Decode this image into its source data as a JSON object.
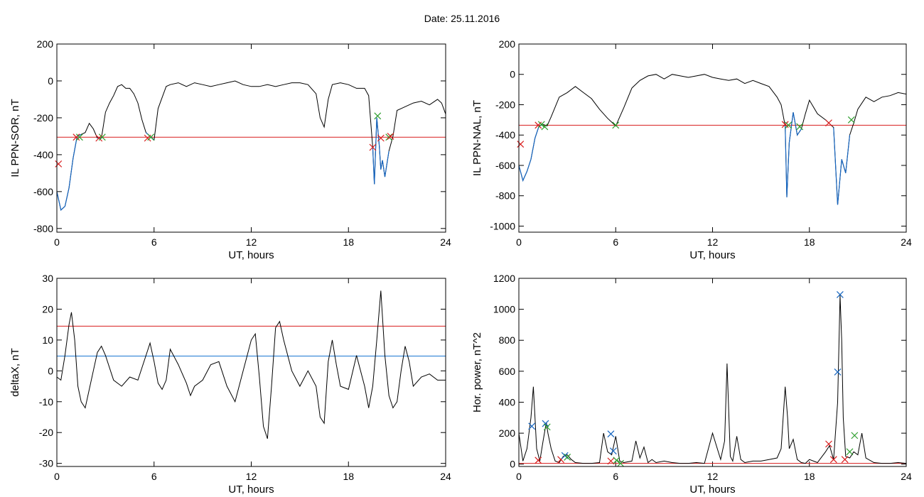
{
  "header": {
    "date_label": "Date:  25.11.2016"
  },
  "colors": {
    "signal": "#000000",
    "threshold": "#d81b1b",
    "storm": "#1565c0",
    "baseline": "#1976d2",
    "marker_red": "#d81b1b",
    "marker_green": "#2e9e2e",
    "marker_blue": "#1565c0"
  },
  "chart_data": [
    {
      "id": "sor",
      "type": "line",
      "title": "",
      "xlabel": "UT, hours",
      "ylabel": "IL PPN-SOR, nT",
      "xlim": [
        0,
        24
      ],
      "ylim": [
        -820,
        200
      ],
      "xticks": [
        0,
        6,
        12,
        18,
        24
      ],
      "yticks": [
        200,
        0,
        -200,
        -400,
        -600,
        -800
      ],
      "series": [
        {
          "x": [
            0,
            0.25,
            0.5,
            0.75,
            1,
            1.25,
            1.5,
            1.75,
            2,
            2.25,
            2.5,
            2.75,
            3,
            3.25,
            3.5,
            3.75,
            4,
            4.25,
            4.5,
            4.75,
            5,
            5.25,
            5.5,
            5.75,
            6,
            6.25,
            6.5,
            6.75,
            7,
            7.5,
            8,
            8.5,
            9,
            9.5,
            10,
            10.5,
            11,
            11.5,
            12,
            12.5,
            13,
            13.5,
            14,
            14.5,
            15,
            15.5,
            16,
            16.25,
            16.5,
            16.75,
            17,
            17.5,
            18,
            18.5,
            19,
            19.25,
            19.5,
            19.6,
            19.75,
            19.9,
            20,
            20.1,
            20.25,
            20.5,
            20.75,
            21,
            21.25,
            21.5,
            22,
            22.5,
            23,
            23.5,
            23.75,
            24
          ],
          "y": [
            -600,
            -700,
            -680,
            -580,
            -420,
            -300,
            -290,
            -280,
            -230,
            -260,
            -310,
            -310,
            -170,
            -120,
            -80,
            -30,
            -20,
            -40,
            -40,
            -70,
            -120,
            -210,
            -280,
            -300,
            -320,
            -150,
            -90,
            -30,
            -20,
            -10,
            -30,
            -10,
            -20,
            -30,
            -20,
            -10,
            0,
            -20,
            -30,
            -30,
            -20,
            -30,
            -20,
            -10,
            -10,
            -20,
            -70,
            -200,
            -250,
            -100,
            -20,
            -10,
            -20,
            -40,
            -40,
            -80,
            -360,
            -560,
            -200,
            -350,
            -480,
            -430,
            -520,
            -380,
            -300,
            -160,
            -150,
            -140,
            -120,
            -110,
            -130,
            -100,
            -120,
            -180
          ]
        }
      ],
      "threshold": -305,
      "storm_ranges": [
        [
          0,
          1.5
        ],
        [
          2.5,
          2.9
        ],
        [
          5.5,
          6
        ],
        [
          19.5,
          20.7
        ]
      ],
      "markers": [
        {
          "x": 0.1,
          "y": -450,
          "color": "red"
        },
        {
          "x": 1.2,
          "y": -305,
          "color": "red"
        },
        {
          "x": 1.4,
          "y": -305,
          "color": "green"
        },
        {
          "x": 2.6,
          "y": -310,
          "color": "red"
        },
        {
          "x": 2.8,
          "y": -305,
          "color": "green"
        },
        {
          "x": 5.6,
          "y": -310,
          "color": "red"
        },
        {
          "x": 5.8,
          "y": -305,
          "color": "green"
        },
        {
          "x": 19.5,
          "y": -360,
          "color": "red"
        },
        {
          "x": 19.8,
          "y": -190,
          "color": "green"
        },
        {
          "x": 20.0,
          "y": -310,
          "color": "red"
        },
        {
          "x": 20.5,
          "y": -305,
          "color": "green"
        },
        {
          "x": 20.6,
          "y": -300,
          "color": "red"
        }
      ]
    },
    {
      "id": "nal",
      "type": "line",
      "title": "",
      "xlabel": "UT, hours",
      "ylabel": "IL PPN-NAL, nT",
      "xlim": [
        0,
        24
      ],
      "ylim": [
        -1040,
        200
      ],
      "xticks": [
        0,
        6,
        12,
        18,
        24
      ],
      "yticks": [
        200,
        0,
        -200,
        -400,
        -600,
        -800,
        -1000
      ],
      "series": [
        {
          "x": [
            0,
            0.25,
            0.5,
            0.75,
            1,
            1.25,
            1.5,
            1.75,
            2,
            2.5,
            3,
            3.5,
            4,
            4.5,
            5,
            5.5,
            6,
            6.5,
            7,
            7.5,
            8,
            8.5,
            9,
            9.5,
            10,
            10.5,
            11,
            11.5,
            12,
            12.5,
            13,
            13.5,
            14,
            14.5,
            15,
            15.5,
            16,
            16.25,
            16.5,
            16.6,
            16.75,
            17,
            17.25,
            17.5,
            17.75,
            18,
            18.5,
            19,
            19.5,
            19.75,
            20,
            20.25,
            20.5,
            20.75,
            21,
            21.5,
            22,
            22.5,
            23,
            23.5,
            24
          ],
          "y": [
            -600,
            -700,
            -640,
            -560,
            -420,
            -340,
            -330,
            -340,
            -280,
            -150,
            -120,
            -80,
            -120,
            -160,
            -230,
            -290,
            -340,
            -220,
            -90,
            -40,
            -10,
            0,
            -30,
            0,
            -10,
            -20,
            -10,
            0,
            -20,
            -30,
            -40,
            -30,
            -60,
            -40,
            -60,
            -80,
            -150,
            -200,
            -340,
            -810,
            -450,
            -250,
            -400,
            -360,
            -260,
            -170,
            -260,
            -300,
            -350,
            -860,
            -560,
            -650,
            -400,
            -320,
            -230,
            -150,
            -180,
            -150,
            -140,
            -120,
            -130
          ]
        }
      ],
      "threshold": -335,
      "storm_ranges": [
        [
          0,
          1.7
        ],
        [
          16.4,
          17.5
        ],
        [
          19.5,
          20.7
        ]
      ],
      "markers": [
        {
          "x": 0.1,
          "y": -460,
          "color": "red"
        },
        {
          "x": 1.2,
          "y": -335,
          "color": "red"
        },
        {
          "x": 1.4,
          "y": -330,
          "color": "green"
        },
        {
          "x": 1.6,
          "y": -345,
          "color": "green"
        },
        {
          "x": 6.0,
          "y": -335,
          "color": "green"
        },
        {
          "x": 16.5,
          "y": -330,
          "color": "red"
        },
        {
          "x": 16.7,
          "y": -335,
          "color": "green"
        },
        {
          "x": 17.4,
          "y": -345,
          "color": "green"
        },
        {
          "x": 19.2,
          "y": -320,
          "color": "red"
        },
        {
          "x": 20.6,
          "y": -300,
          "color": "green"
        }
      ]
    },
    {
      "id": "deltax",
      "type": "line",
      "title": "",
      "xlabel": "UT, hours",
      "ylabel": "deltaX, nT",
      "xlim": [
        0,
        24
      ],
      "ylim": [
        -31,
        30
      ],
      "xticks": [
        0,
        6,
        12,
        18,
        24
      ],
      "yticks": [
        30,
        20,
        10,
        0,
        -10,
        -20,
        -30
      ],
      "series": [
        {
          "x": [
            0,
            0.25,
            0.5,
            0.75,
            0.9,
            1.1,
            1.3,
            1.5,
            1.75,
            2,
            2.25,
            2.5,
            2.75,
            3,
            3.5,
            4,
            4.5,
            5,
            5.5,
            5.75,
            6,
            6.25,
            6.5,
            6.75,
            7,
            7.5,
            8,
            8.25,
            8.5,
            9,
            9.5,
            10,
            10.5,
            11,
            11.5,
            12,
            12.25,
            12.5,
            12.75,
            13,
            13.25,
            13.5,
            13.75,
            14,
            14.5,
            15,
            15.5,
            16,
            16.25,
            16.5,
            16.75,
            17,
            17.25,
            17.5,
            18,
            18.5,
            19,
            19.25,
            19.5,
            19.75,
            20,
            20.25,
            20.5,
            20.75,
            21,
            21.25,
            21.5,
            21.75,
            22,
            22.5,
            23,
            23.5,
            24
          ],
          "y": [
            -2,
            -3,
            5,
            15,
            19,
            10,
            -5,
            -10,
            -12,
            -6,
            0,
            6,
            8,
            5,
            -3,
            -5,
            -2,
            -3,
            5,
            9,
            3,
            -4,
            -6,
            -3,
            7,
            2,
            -4,
            -8,
            -5,
            -3,
            2,
            3,
            -5,
            -10,
            0,
            10,
            12,
            -2,
            -18,
            -22,
            -5,
            14,
            16,
            10,
            0,
            -5,
            0,
            -5,
            -15,
            -17,
            3,
            10,
            2,
            -5,
            -6,
            5,
            -5,
            -12,
            -5,
            10,
            26,
            5,
            -8,
            -12,
            -10,
            0,
            8,
            3,
            -5,
            -2,
            -1,
            -3,
            -3
          ]
        }
      ],
      "lines": [
        {
          "y": 14.5,
          "color": "red"
        },
        {
          "y": 4.8,
          "color": "blue"
        }
      ]
    },
    {
      "id": "power",
      "type": "line",
      "title": "",
      "xlabel": "UT, hours",
      "ylabel": "Hor. power, nT^2",
      "xlim": [
        0,
        24
      ],
      "ylim": [
        -15,
        1200
      ],
      "xticks": [
        0,
        6,
        12,
        18,
        24
      ],
      "yticks": [
        1200,
        1000,
        800,
        600,
        400,
        200,
        0
      ],
      "series": [
        {
          "x": [
            0,
            0.25,
            0.5,
            0.75,
            0.9,
            1.1,
            1.3,
            1.5,
            1.7,
            1.8,
            2,
            2.25,
            2.5,
            2.75,
            3,
            3.25,
            3.5,
            4,
            4.5,
            5,
            5.25,
            5.5,
            5.75,
            6,
            6.25,
            6.5,
            7,
            7.25,
            7.5,
            7.75,
            8,
            8.25,
            8.5,
            9,
            9.5,
            10,
            10.5,
            11,
            11.5,
            12,
            12.5,
            12.75,
            12.9,
            13.1,
            13.25,
            13.5,
            13.75,
            14,
            14.5,
            15,
            15.5,
            16,
            16.25,
            16.5,
            16.65,
            16.75,
            17,
            17.25,
            17.5,
            17.75,
            18,
            18.5,
            19,
            19.25,
            19.5,
            19.75,
            19.9,
            20,
            20.1,
            20.25,
            20.5,
            20.75,
            21,
            21.25,
            21.5,
            22,
            22.5,
            23,
            23.5,
            24
          ],
          "y": [
            200,
            20,
            100,
            300,
            500,
            100,
            20,
            150,
            270,
            200,
            100,
            20,
            10,
            50,
            60,
            30,
            10,
            5,
            5,
            10,
            200,
            80,
            60,
            180,
            20,
            10,
            20,
            150,
            40,
            110,
            10,
            30,
            10,
            20,
            10,
            5,
            5,
            10,
            5,
            200,
            30,
            150,
            650,
            50,
            20,
            180,
            30,
            10,
            20,
            20,
            30,
            40,
            100,
            500,
            300,
            100,
            160,
            30,
            10,
            5,
            30,
            10,
            80,
            120,
            30,
            400,
            1090,
            800,
            300,
            50,
            40,
            80,
            60,
            200,
            40,
            10,
            5,
            5,
            10,
            5
          ]
        }
      ],
      "lines": [
        {
          "y": 5,
          "color": "red"
        }
      ],
      "markers": [
        {
          "x": 0.8,
          "y": 245,
          "color": "blue"
        },
        {
          "x": 1.65,
          "y": 262,
          "color": "blue"
        },
        {
          "x": 1.75,
          "y": 240,
          "color": "green"
        },
        {
          "x": 1.2,
          "y": 25,
          "color": "red"
        },
        {
          "x": 2.6,
          "y": 30,
          "color": "red"
        },
        {
          "x": 2.85,
          "y": 55,
          "color": "blue"
        },
        {
          "x": 3.0,
          "y": 45,
          "color": "green"
        },
        {
          "x": 5.7,
          "y": 195,
          "color": "blue"
        },
        {
          "x": 5.85,
          "y": 85,
          "color": "blue"
        },
        {
          "x": 5.7,
          "y": 20,
          "color": "red"
        },
        {
          "x": 6.05,
          "y": 25,
          "color": "green"
        },
        {
          "x": 6.3,
          "y": 5,
          "color": "green"
        },
        {
          "x": 19.2,
          "y": 130,
          "color": "red"
        },
        {
          "x": 19.5,
          "y": 30,
          "color": "red"
        },
        {
          "x": 19.75,
          "y": 595,
          "color": "blue"
        },
        {
          "x": 19.9,
          "y": 1095,
          "color": "blue"
        },
        {
          "x": 20.2,
          "y": 30,
          "color": "red"
        },
        {
          "x": 20.5,
          "y": 80,
          "color": "green"
        },
        {
          "x": 20.8,
          "y": 185,
          "color": "green"
        }
      ]
    }
  ]
}
